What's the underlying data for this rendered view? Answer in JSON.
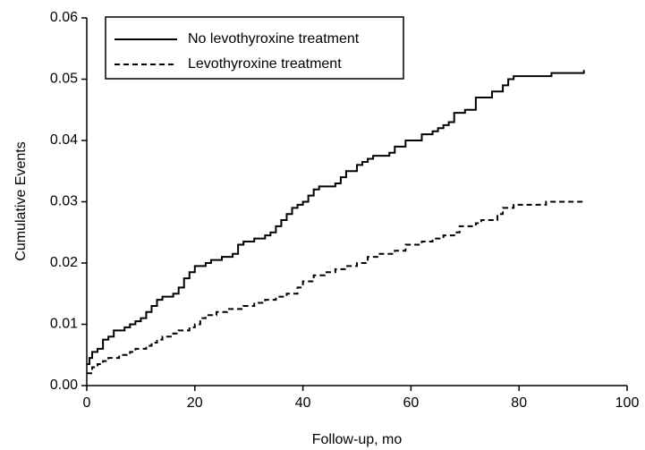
{
  "chart_data": {
    "type": "step",
    "xlabel": "Follow-up, mo",
    "ylabel": "Cumulative Events",
    "xlim": [
      0,
      100
    ],
    "xticks": [
      0,
      20,
      40,
      60,
      80,
      100
    ],
    "ylim": [
      0,
      0.06
    ],
    "yticks": [
      {
        "value": 0,
        "label": "0.00"
      },
      0.01,
      0.02,
      0.03,
      0.04,
      0.05,
      0.06
    ],
    "legend": "upper left",
    "series": [
      {
        "name": "No levothyroxine treatment",
        "color": "#000000",
        "dash": "solid",
        "x": [
          0,
          0.5,
          1,
          2,
          3,
          4,
          5,
          7,
          8,
          9,
          10,
          11,
          12,
          13,
          14,
          16,
          17,
          18,
          19,
          20,
          22,
          23,
          25,
          27,
          28,
          29,
          31,
          33,
          34,
          35,
          36,
          37,
          38,
          39,
          40,
          41,
          42,
          43,
          46,
          47,
          48,
          50,
          51,
          52,
          53,
          56,
          57,
          59,
          62,
          64,
          65,
          66,
          67,
          68,
          70,
          72,
          75,
          77,
          78,
          79,
          86,
          92
        ],
        "values": [
          0.0035,
          0.0045,
          0.0055,
          0.006,
          0.0075,
          0.008,
          0.009,
          0.0095,
          0.01,
          0.0105,
          0.011,
          0.012,
          0.013,
          0.014,
          0.0145,
          0.015,
          0.016,
          0.0175,
          0.0185,
          0.0195,
          0.02,
          0.0205,
          0.021,
          0.0215,
          0.023,
          0.0235,
          0.024,
          0.0245,
          0.025,
          0.026,
          0.027,
          0.028,
          0.029,
          0.0295,
          0.03,
          0.031,
          0.032,
          0.0325,
          0.033,
          0.034,
          0.035,
          0.036,
          0.0365,
          0.037,
          0.0375,
          0.038,
          0.039,
          0.04,
          0.041,
          0.0415,
          0.042,
          0.0425,
          0.043,
          0.0445,
          0.045,
          0.047,
          0.048,
          0.049,
          0.05,
          0.0505,
          0.051,
          0.0515
        ]
      },
      {
        "name": "Levothyroxine treatment",
        "color": "#000000",
        "dash": "dashed",
        "x": [
          0,
          1,
          2,
          3,
          4,
          6,
          8,
          9,
          11,
          12,
          13,
          14,
          16,
          17,
          19,
          20,
          21,
          22,
          24,
          26,
          29,
          31,
          33,
          35,
          37,
          39,
          40,
          42,
          44,
          46,
          48,
          50,
          52,
          54,
          57,
          59,
          62,
          64,
          66,
          68,
          69,
          72,
          73,
          76,
          77,
          79,
          85,
          92
        ],
        "values": [
          0.002,
          0.003,
          0.0035,
          0.004,
          0.0045,
          0.005,
          0.0055,
          0.006,
          0.0065,
          0.007,
          0.0075,
          0.008,
          0.0085,
          0.009,
          0.0095,
          0.01,
          0.011,
          0.0115,
          0.012,
          0.0125,
          0.013,
          0.0135,
          0.014,
          0.0145,
          0.015,
          0.016,
          0.017,
          0.018,
          0.0185,
          0.019,
          0.0195,
          0.02,
          0.021,
          0.0215,
          0.022,
          0.023,
          0.0235,
          0.024,
          0.0245,
          0.025,
          0.026,
          0.0265,
          0.027,
          0.028,
          0.029,
          0.0295,
          0.03,
          0.03
        ]
      }
    ]
  }
}
